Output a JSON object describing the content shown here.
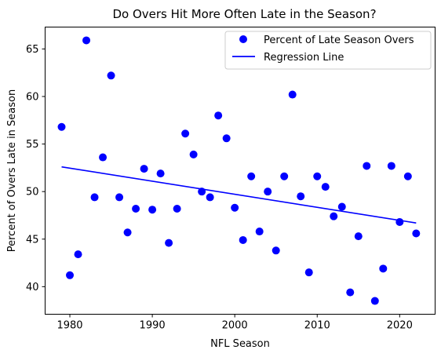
{
  "chart_data": {
    "type": "scatter",
    "title": "Do Overs Hit More Often Late in the Season?",
    "xlabel": "NFL Season",
    "ylabel": "Percent of Overs Late in Season",
    "xlim": [
      1977,
      2024.3
    ],
    "ylim": [
      37.1,
      67.3
    ],
    "xticks": [
      1980,
      1990,
      2000,
      2010,
      2020
    ],
    "yticks": [
      40,
      45,
      50,
      55,
      60,
      65
    ],
    "grid": false,
    "legend_position": "top-right",
    "colors": {
      "points": "#0000ff",
      "line": "#0000ff"
    },
    "series": [
      {
        "name": "Percent of Late Season Overs",
        "kind": "scatter",
        "x": [
          1979,
          1980,
          1981,
          1982,
          1983,
          1984,
          1985,
          1986,
          1987,
          1988,
          1989,
          1990,
          1991,
          1992,
          1993,
          1994,
          1995,
          1996,
          1997,
          1998,
          1999,
          2000,
          2001,
          2002,
          2003,
          2004,
          2005,
          2006,
          2007,
          2008,
          2009,
          2010,
          2011,
          2012,
          2013,
          2014,
          2015,
          2016,
          2017,
          2018,
          2019,
          2020,
          2021,
          2022
        ],
        "y": [
          56.8,
          41.2,
          43.4,
          65.9,
          49.4,
          53.6,
          62.2,
          49.4,
          45.7,
          48.2,
          52.4,
          48.1,
          51.9,
          44.6,
          48.2,
          56.1,
          53.9,
          50.0,
          49.4,
          58.0,
          55.6,
          48.3,
          44.9,
          51.6,
          45.8,
          50.0,
          43.8,
          51.6,
          60.2,
          49.5,
          41.5,
          51.6,
          50.5,
          47.4,
          48.4,
          39.4,
          45.3,
          52.7,
          38.5,
          41.9,
          52.7,
          46.8,
          51.6,
          45.6
        ]
      },
      {
        "name": "Regression Line",
        "kind": "line",
        "x": [
          1979,
          2022
        ],
        "y": [
          52.6,
          46.7
        ]
      }
    ]
  }
}
